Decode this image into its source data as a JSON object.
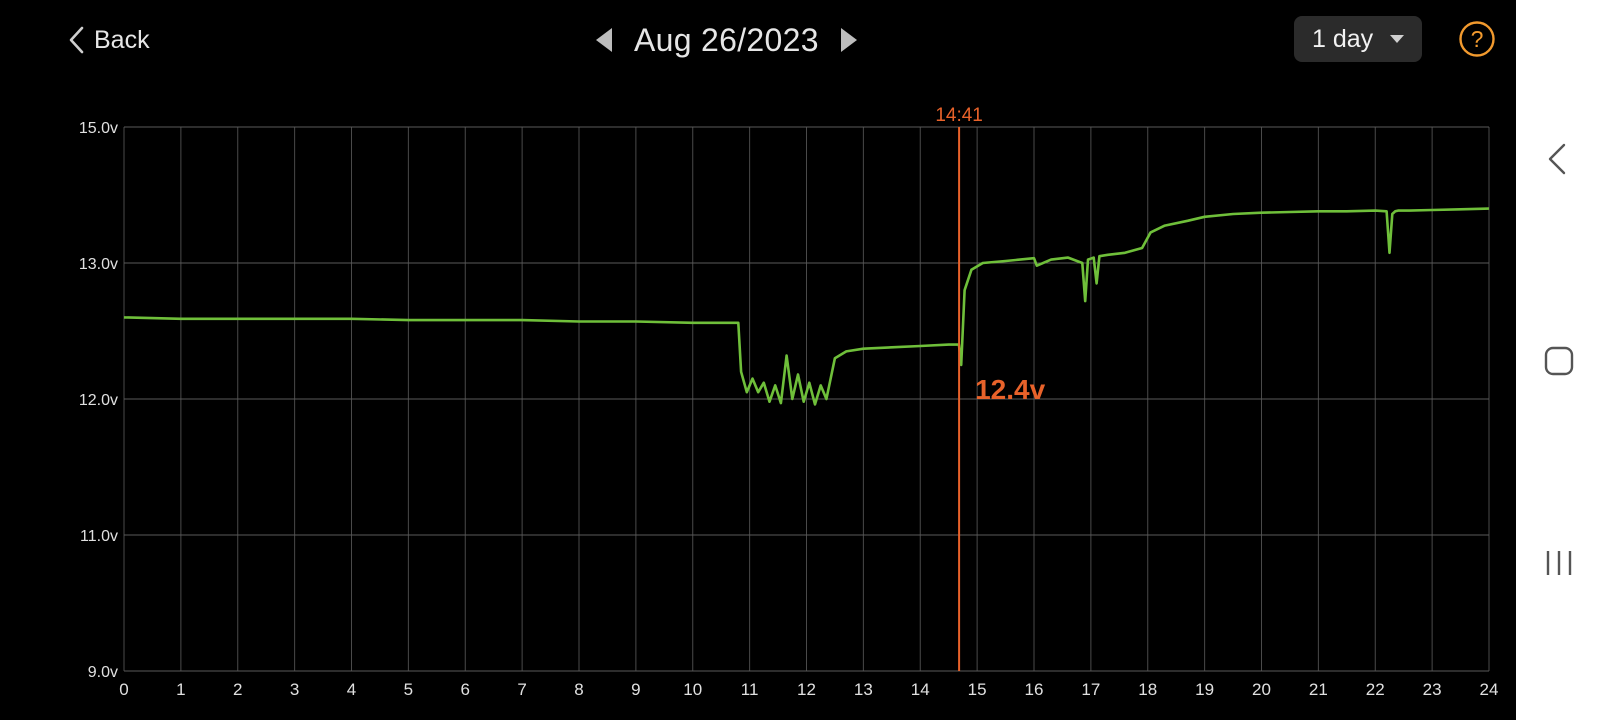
{
  "header": {
    "back_label": "Back",
    "date_label": "Aug 26/2023",
    "range_label": "1 day",
    "help_icon": "question-circle-icon",
    "accent_color": "#f29a2e"
  },
  "cursor": {
    "time_label": "14:41",
    "value_label": "12.4v",
    "time_hours": 14.683,
    "color": "#e8622a"
  },
  "chart_data": {
    "type": "line",
    "title": "",
    "xlabel": "",
    "ylabel": "",
    "xlim": [
      0,
      24
    ],
    "x_ticks": [
      "0",
      "1",
      "2",
      "3",
      "4",
      "5",
      "6",
      "7",
      "8",
      "9",
      "10",
      "11",
      "12",
      "13",
      "14",
      "15",
      "16",
      "17",
      "18",
      "19",
      "20",
      "21",
      "22",
      "23",
      "24"
    ],
    "y_ticks": [
      "15.0v",
      "13.0v",
      "12.0v",
      "11.0v",
      "9.0v"
    ],
    "y_tick_values": [
      15,
      13,
      12,
      11,
      9
    ],
    "y_scale": "piecewise between labeled ticks",
    "grid": true,
    "line_color": "#6fbf3a",
    "series": [
      {
        "name": "",
        "x": [
          0,
          1,
          2,
          3,
          4,
          5,
          6,
          7,
          8,
          9,
          10,
          10.8,
          10.85,
          10.95,
          11.05,
          11.15,
          11.25,
          11.35,
          11.45,
          11.55,
          11.65,
          11.75,
          11.85,
          11.95,
          12.05,
          12.15,
          12.25,
          12.35,
          12.5,
          12.7,
          13,
          13.5,
          14,
          14.5,
          14.68,
          14.72,
          14.78,
          14.9,
          15.1,
          15.5,
          16,
          16.05,
          16.3,
          16.6,
          16.85,
          16.9,
          16.95,
          17.05,
          17.1,
          17.15,
          17.3,
          17.6,
          17.9,
          18.05,
          18.3,
          18.7,
          19,
          19.5,
          20,
          20.5,
          21,
          21.5,
          22,
          22.2,
          22.25,
          22.3,
          22.35,
          22.4,
          22.6,
          23,
          23.5,
          24
        ],
        "values": [
          12.6,
          12.59,
          12.59,
          12.59,
          12.59,
          12.58,
          12.58,
          12.58,
          12.57,
          12.57,
          12.56,
          12.56,
          12.2,
          12.05,
          12.15,
          12.05,
          12.12,
          11.98,
          12.1,
          11.97,
          12.32,
          12.0,
          12.18,
          11.98,
          12.12,
          11.96,
          12.1,
          12.0,
          12.3,
          12.35,
          12.37,
          12.38,
          12.39,
          12.4,
          12.4,
          12.25,
          12.8,
          12.95,
          13.0,
          13.03,
          13.07,
          12.98,
          13.05,
          13.08,
          13.0,
          12.72,
          13.05,
          13.08,
          12.85,
          13.1,
          13.12,
          13.15,
          13.22,
          13.45,
          13.55,
          13.62,
          13.68,
          13.72,
          13.74,
          13.75,
          13.76,
          13.76,
          13.77,
          13.76,
          13.15,
          13.72,
          13.76,
          13.77,
          13.77,
          13.78,
          13.79,
          13.8
        ]
      }
    ]
  },
  "system_nav": {
    "back_icon": "system-back-icon",
    "home_icon": "system-home-icon",
    "recents_icon": "system-recents-icon"
  }
}
